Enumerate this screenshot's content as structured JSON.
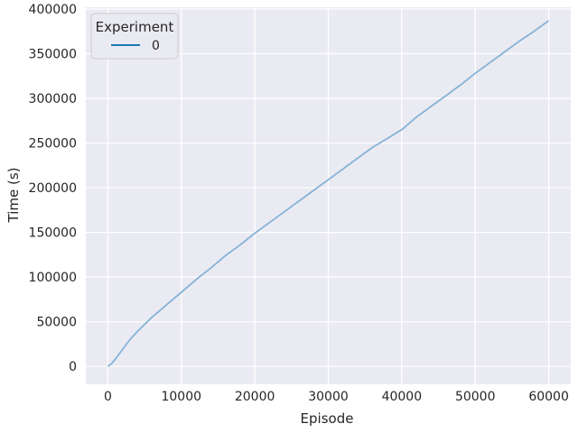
{
  "chart_data": {
    "type": "line",
    "title": "",
    "xlabel": "Episode",
    "ylabel": "Time (s)",
    "xlim": [
      -3000,
      63000
    ],
    "ylim": [
      -20000,
      402000
    ],
    "x_ticks": [
      0,
      10000,
      20000,
      30000,
      40000,
      50000,
      60000
    ],
    "y_ticks": [
      0,
      50000,
      100000,
      150000,
      200000,
      250000,
      300000,
      350000,
      400000
    ],
    "grid": true,
    "background": "#eaeaf2",
    "legend": {
      "title": "Experiment",
      "placement": "top-left"
    },
    "series": [
      {
        "name": "0",
        "color": "#1f77b4",
        "line_color": "#86b3d8",
        "x": [
          0,
          500,
          1000,
          2000,
          3000,
          4000,
          5000,
          6000,
          7000,
          8000,
          9000,
          10000,
          12000,
          14000,
          15000,
          16000,
          18000,
          20000,
          22000,
          24000,
          26000,
          28000,
          30000,
          32000,
          34000,
          36000,
          38000,
          39000,
          40000,
          41000,
          42000,
          43000,
          44000,
          45000,
          46000,
          47000,
          48000,
          50000,
          52000,
          54000,
          56000,
          58000,
          60000
        ],
        "y": [
          0,
          3000,
          8000,
          19000,
          30000,
          39000,
          47000,
          55000,
          62000,
          69000,
          76000,
          83000,
          97000,
          110000,
          117000,
          124000,
          136000,
          149000,
          161000,
          173000,
          185000,
          197000,
          209000,
          221000,
          233000,
          245000,
          255000,
          260000,
          265000,
          272000,
          279000,
          285000,
          291000,
          297000,
          303000,
          309000,
          315000,
          328000,
          340000,
          352000,
          364000,
          375000,
          387000
        ]
      }
    ]
  }
}
